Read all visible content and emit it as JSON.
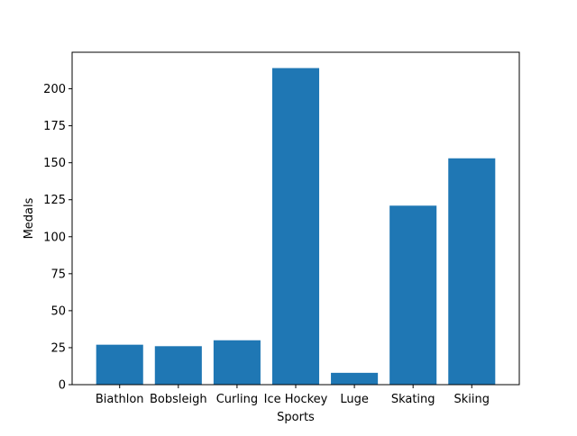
{
  "chart_data": {
    "type": "bar",
    "categories": [
      "Biathlon",
      "Bobsleigh",
      "Curling",
      "Ice Hockey",
      "Luge",
      "Skating",
      "Skiing"
    ],
    "values": [
      27,
      26,
      30,
      214,
      8,
      121,
      153
    ],
    "title": "",
    "xlabel": "Sports",
    "ylabel": "Medals",
    "ylim": [
      0,
      224.7
    ],
    "yticks": [
      0,
      25,
      50,
      75,
      100,
      125,
      150,
      175,
      200
    ],
    "grid": false,
    "bar_color": "#1f77b4"
  }
}
